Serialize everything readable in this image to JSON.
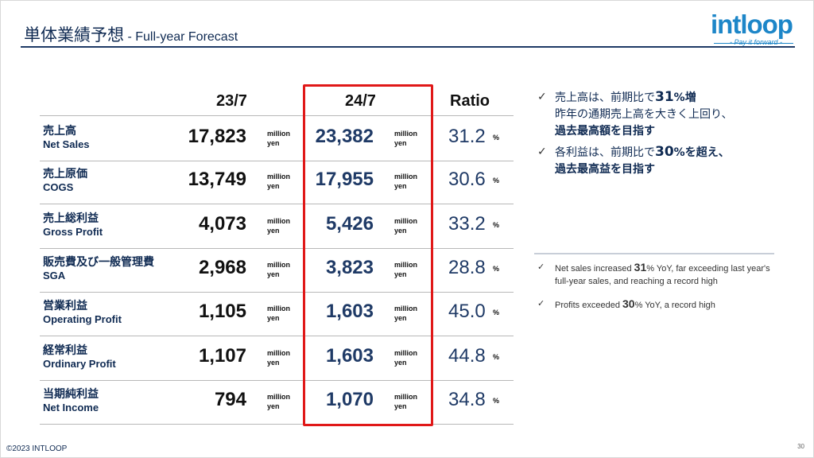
{
  "title": {
    "jp": "単体業績予想",
    "en": "- Full-year Forecast"
  },
  "logo": {
    "word": "intloop",
    "tagline": "- Pay it forward -",
    "color": "#1d86c8"
  },
  "columns": {
    "prev": "23/7",
    "curr": "24/7",
    "ratio": "Ratio"
  },
  "unit": {
    "line1": "million",
    "line2": "yen"
  },
  "pct_symbol": "%",
  "rows": [
    {
      "jp": "売上高",
      "en": "Net Sales",
      "prev": "17,823",
      "curr": "23,382",
      "ratio": "31.2"
    },
    {
      "jp": "売上原価",
      "en": "COGS",
      "prev": "13,749",
      "curr": "17,955",
      "ratio": "30.6"
    },
    {
      "jp": "売上総利益",
      "en": "Gross Profit",
      "prev": "4,073",
      "curr": "5,426",
      "ratio": "33.2"
    },
    {
      "jp": "販売費及び一般管理費",
      "en": "SGA",
      "prev": "2,968",
      "curr": "3,823",
      "ratio": "28.8"
    },
    {
      "jp": "営業利益",
      "en": "Operating Profit",
      "prev": "1,105",
      "curr": "1,603",
      "ratio": "45.0"
    },
    {
      "jp": "経常利益",
      "en": "Ordinary Profit",
      "prev": "1,107",
      "curr": "1,603",
      "ratio": "44.8"
    },
    {
      "jp": "当期純利益",
      "en": "Net Income",
      "prev": "794",
      "curr": "1,070",
      "ratio": "34.8"
    }
  ],
  "highlight_color": "#e01818",
  "check": "✓",
  "bullets_jp": [
    {
      "a": "売上高は、前期比で",
      "num": "31",
      "b": "%増",
      "c": "昨年の通期売上高を大きく上回り、",
      "d": "過去最高額を目指す"
    },
    {
      "a": "各利益は、前期比で",
      "num": "30",
      "b": "%を超え、",
      "d": "過去最高益を目指す"
    }
  ],
  "bullets_en": [
    {
      "a": "Net sales increased ",
      "num": "31",
      "b": "% YoY, far exceeding last year's full-year sales, and reaching a record high"
    },
    {
      "a": "Profits exceeded ",
      "num": "30",
      "b": "% YoY, a record high"
    }
  ],
  "footer": {
    "copyright": "©2023 INTLOOP",
    "page": "30"
  }
}
